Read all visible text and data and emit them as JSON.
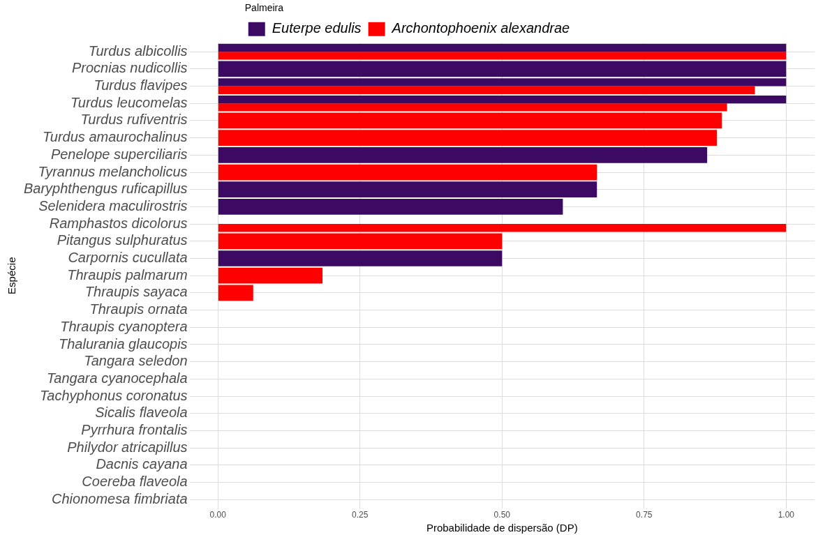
{
  "chart_data": {
    "type": "bar",
    "orientation": "horizontal",
    "xlabel": "Probabilidade de dispersão (DP)",
    "ylabel": "Espécie",
    "legend_title": "Palmeira",
    "legend": "top",
    "categories": [
      "Turdus albicollis",
      "Procnias nudicollis",
      "Turdus flavipes",
      "Turdus leucomelas",
      "Turdus rufiventris",
      "Turdus amaurochalinus",
      "Penelope superciliaris",
      "Tyrannus melancholicus",
      "Baryphthengus ruficapillus",
      "Selenidera maculirostris",
      "Ramphastos dicolorus",
      "Pitangus sulphuratus",
      "Carpornis cucullata",
      "Thraupis palmarum",
      "Thraupis sayaca",
      "Thraupis ornata",
      "Thraupis cyanoptera",
      "Thalurania glaucopis",
      "Tangara seledon",
      "Tangara cyanocephala",
      "Tachyphonus coronatus",
      "Sicalis flaveola",
      "Pyrrhura frontalis",
      "Philydor atricapillus",
      "Dacnis cayana",
      "Coereba flaveola",
      "Chionomesa fimbriata"
    ],
    "series": [
      {
        "name": "Euterpe edulis",
        "color": "#3d0a63",
        "values": [
          1,
          1,
          1,
          1,
          null,
          null,
          0.861,
          null,
          0.667,
          0.607,
          0,
          null,
          0.5,
          null,
          null,
          null,
          null,
          null,
          null,
          null,
          null,
          null,
          null,
          null,
          null,
          null,
          null
        ]
      },
      {
        "name": "Archontophoenix alexandrae",
        "color": "#ff0000",
        "values": [
          1,
          null,
          0.945,
          0.896,
          0.887,
          0.878,
          null,
          0.667,
          null,
          null,
          1,
          0.5,
          null,
          0.184,
          0.062,
          null,
          null,
          null,
          null,
          null,
          null,
          null,
          null,
          null,
          null,
          null,
          null
        ]
      }
    ],
    "xlim": [
      -0.05,
      1.05
    ],
    "xticks": [
      {
        "value": 0,
        "label": "0.00"
      },
      {
        "value": 0.25,
        "label": "0.25"
      },
      {
        "value": 0.5,
        "label": "0.50"
      },
      {
        "value": 0.75,
        "label": "0.75"
      },
      {
        "value": 1,
        "label": "1.00"
      }
    ],
    "grid": true
  }
}
